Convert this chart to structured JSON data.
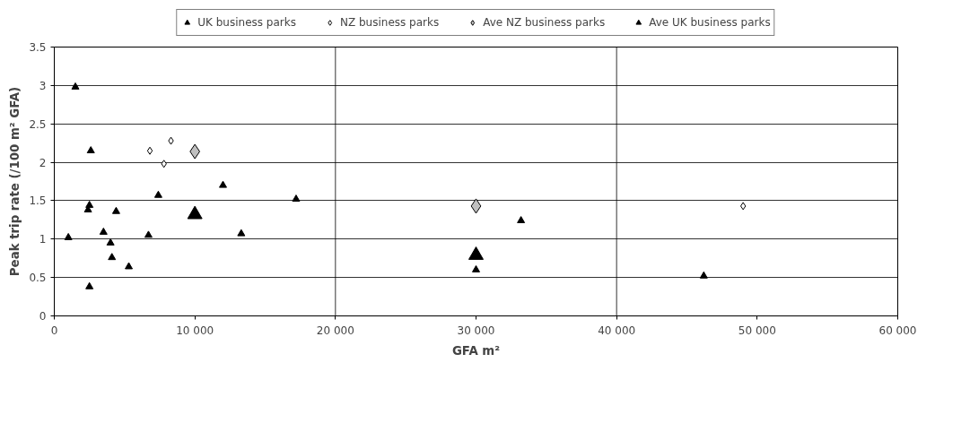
{
  "chart_data": {
    "type": "scatter",
    "xlabel": "GFA m²",
    "ylabel": "Peak trip rate (/100 m² GFA)",
    "xlim": [
      0,
      60000
    ],
    "ylim": [
      0,
      3.5
    ],
    "xticks": [
      0,
      {
        "value": 10000,
        "label": "10 000"
      },
      {
        "value": 20000,
        "label": "20 000"
      },
      {
        "value": 30000,
        "label": "30 000"
      },
      {
        "value": 40000,
        "label": "40 000"
      },
      {
        "value": 50000,
        "label": "50 000"
      },
      {
        "value": 60000,
        "label": "60 000"
      }
    ],
    "yticks": [
      0,
      0.5,
      1,
      1.5,
      2,
      2.5,
      3,
      3.5
    ],
    "grid": "y",
    "legend": "top",
    "ref_lines": [
      {
        "axis": "x",
        "value": 20000,
        "color": "#000000"
      },
      {
        "axis": "x",
        "value": 40000,
        "color": "#000000"
      }
    ],
    "series": [
      {
        "name": "UK business parks",
        "color": "#000000",
        "marker": "triangle",
        "x": [
          1500,
          2600,
          2400,
          2500,
          4400,
          1000,
          3500,
          4000,
          4100,
          5300,
          2500,
          7400,
          6700,
          12000,
          13300,
          17200,
          30000,
          33200,
          46200
        ],
        "values": [
          2.98,
          2.15,
          1.38,
          1.44,
          1.36,
          1.02,
          1.09,
          0.95,
          0.76,
          0.64,
          0.38,
          1.57,
          1.05,
          1.7,
          1.07,
          1.52,
          0.6,
          1.24,
          0.52
        ]
      },
      {
        "name": "NZ business parks",
        "color": "#ffffff",
        "marker": "diamond",
        "x": [
          6800,
          8300,
          7800,
          49000
        ],
        "values": [
          2.15,
          2.28,
          1.98,
          1.43
        ]
      },
      {
        "name": "Ave NZ business parks",
        "color": "#c0c0c0",
        "marker": "diamond",
        "x": [
          10000,
          30000
        ],
        "values": [
          2.14,
          1.43
        ]
      },
      {
        "name": "Ave UK business parks",
        "color": "#000000",
        "marker": "triangle",
        "x": [
          10000,
          30000
        ],
        "values": [
          1.32,
          0.79
        ]
      }
    ]
  }
}
